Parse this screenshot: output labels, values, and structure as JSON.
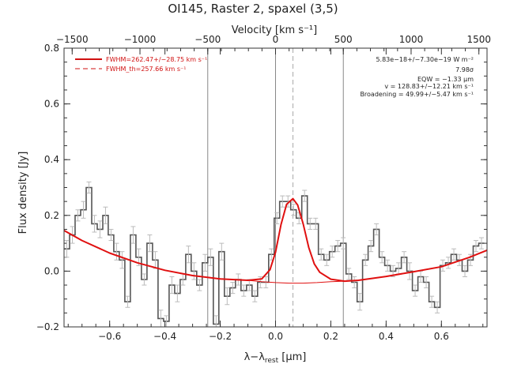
{
  "chart_data": {
    "type": "line",
    "title": "OI145, Raster 2, spaxel (3,5)",
    "top_axis_label": "Velocity [km s⁻¹]",
    "xlabel": "λ−λ",
    "xlabel_sub": "rest",
    "xlabel_unit": " [μm]",
    "ylabel": "Flux density [Jy]",
    "xlim": [
      -0.765,
      0.765
    ],
    "ylim": [
      -0.2,
      0.8
    ],
    "top_xlim": [
      -1560,
      1560
    ],
    "x_ticks": [
      -0.6,
      -0.4,
      -0.2,
      0.0,
      0.2,
      0.4,
      0.6
    ],
    "x_tick_labels": [
      "−0.6",
      "−0.4",
      "−0.2",
      "0.0",
      "0.2",
      "0.4",
      "0.6"
    ],
    "y_ticks": [
      -0.2,
      0.0,
      0.2,
      0.4,
      0.6,
      0.8
    ],
    "y_tick_labels": [
      "−0.2",
      "0.0",
      "0.2",
      "0.4",
      "0.6",
      "0.8"
    ],
    "top_ticks": [
      -1500,
      -1000,
      -500,
      0,
      500,
      1000,
      1500
    ],
    "top_tick_labels": [
      "−1500",
      "−1000",
      "−500",
      "0",
      "500",
      "1000",
      "1500"
    ],
    "vertical_lines_velocity": [
      -500,
      0,
      500
    ],
    "dashed_line_x": 0.063,
    "legend": [
      {
        "label": "FWHM=262.47+/−28.75 km s⁻¹",
        "style": "solid",
        "color": "#d01010"
      },
      {
        "label": "FWHM_th=257.66 km s⁻¹",
        "style": "dashed",
        "color": "#d01010"
      }
    ],
    "annotations": [
      "5.83e−18+/−7.30e−19 W m⁻²",
      "7.98σ",
      "EQW = −1.33 μm",
      "v = 128.83+/−12.21 km s⁻¹",
      "Broadening = 49.99+/−5.47 km s⁻¹"
    ],
    "series": [
      {
        "kind": "step",
        "color": "#555555",
        "x": [
          -0.755,
          -0.735,
          -0.715,
          -0.695,
          -0.675,
          -0.655,
          -0.635,
          -0.615,
          -0.595,
          -0.575,
          -0.555,
          -0.535,
          -0.515,
          -0.495,
          -0.475,
          -0.455,
          -0.435,
          -0.415,
          -0.395,
          -0.375,
          -0.355,
          -0.335,
          -0.315,
          -0.295,
          -0.275,
          -0.255,
          -0.235,
          -0.215,
          -0.195,
          -0.175,
          -0.155,
          -0.135,
          -0.115,
          -0.095,
          -0.075,
          -0.055,
          -0.035,
          -0.015,
          0.005,
          0.025,
          0.045,
          0.065,
          0.085,
          0.105,
          0.125,
          0.145,
          0.165,
          0.185,
          0.205,
          0.225,
          0.245,
          0.265,
          0.285,
          0.305,
          0.325,
          0.345,
          0.365,
          0.385,
          0.405,
          0.425,
          0.445,
          0.465,
          0.485,
          0.505,
          0.525,
          0.545,
          0.565,
          0.585,
          0.605,
          0.625,
          0.645,
          0.665,
          0.685,
          0.705,
          0.725,
          0.745
        ],
        "y": [
          0.08,
          0.13,
          0.2,
          0.22,
          0.3,
          0.17,
          0.15,
          0.2,
          0.13,
          0.07,
          0.04,
          -0.11,
          0.13,
          0.05,
          -0.03,
          0.1,
          0.04,
          -0.17,
          -0.18,
          -0.05,
          -0.08,
          -0.03,
          0.06,
          0.0,
          -0.05,
          0.03,
          0.05,
          -0.19,
          0.07,
          -0.09,
          -0.06,
          -0.03,
          -0.07,
          -0.05,
          -0.09,
          -0.04,
          -0.04,
          0.06,
          0.19,
          0.25,
          0.25,
          0.22,
          0.19,
          0.27,
          0.17,
          0.17,
          0.06,
          0.04,
          0.07,
          0.09,
          0.1,
          -0.01,
          -0.04,
          -0.11,
          0.04,
          0.09,
          0.15,
          0.05,
          0.02,
          0.0,
          0.01,
          0.05,
          0.0,
          -0.07,
          -0.02,
          -0.04,
          -0.11,
          -0.13,
          0.02,
          0.03,
          0.06,
          0.04,
          0.0,
          0.04,
          0.09,
          0.1
        ],
        "err": [
          0.03,
          0.03,
          0.02,
          0.03,
          0.02,
          0.03,
          0.03,
          0.03,
          0.02,
          0.03,
          0.03,
          0.02,
          0.03,
          0.03,
          0.02,
          0.03,
          0.03,
          0.03,
          0.02,
          0.03,
          0.03,
          0.02,
          0.03,
          0.03,
          0.02,
          0.03,
          0.03,
          0.03,
          0.03,
          0.03,
          0.02,
          0.02,
          0.02,
          0.02,
          0.02,
          0.02,
          0.02,
          0.02,
          0.02,
          0.02,
          0.02,
          0.02,
          0.02,
          0.02,
          0.02,
          0.02,
          0.02,
          0.02,
          0.02,
          0.02,
          0.02,
          0.02,
          0.02,
          0.03,
          0.02,
          0.02,
          0.02,
          0.02,
          0.02,
          0.02,
          0.02,
          0.02,
          0.03,
          0.02,
          0.02,
          0.02,
          0.02,
          0.02,
          0.02,
          0.02,
          0.02,
          0.02,
          0.02,
          0.02,
          0.02,
          0.02
        ]
      },
      {
        "kind": "line",
        "color": "#e01010",
        "name": "FWHM=262.47+/−28.75 km s⁻¹",
        "x": [
          -0.765,
          -0.7,
          -0.6,
          -0.5,
          -0.4,
          -0.3,
          -0.2,
          -0.1,
          -0.05,
          -0.02,
          0.0,
          0.02,
          0.04,
          0.063,
          0.08,
          0.1,
          0.12,
          0.14,
          0.16,
          0.2,
          0.25,
          0.3,
          0.4,
          0.5,
          0.6,
          0.7,
          0.765
        ],
        "y": [
          0.146,
          0.11,
          0.065,
          0.03,
          0.003,
          -0.016,
          -0.028,
          -0.033,
          -0.028,
          0.005,
          0.068,
          0.168,
          0.24,
          0.26,
          0.237,
          0.169,
          0.085,
          0.026,
          -0.004,
          -0.029,
          -0.036,
          -0.033,
          -0.019,
          -0.002,
          0.016,
          0.049,
          0.075
        ]
      },
      {
        "kind": "line",
        "color": "#e01010",
        "x": [
          -0.1,
          -0.05,
          0.0,
          0.05,
          0.1,
          0.15,
          0.2,
          0.25
        ],
        "y": [
          -0.033,
          -0.038,
          -0.041,
          -0.043,
          -0.043,
          -0.041,
          -0.038,
          -0.036
        ]
      }
    ]
  }
}
